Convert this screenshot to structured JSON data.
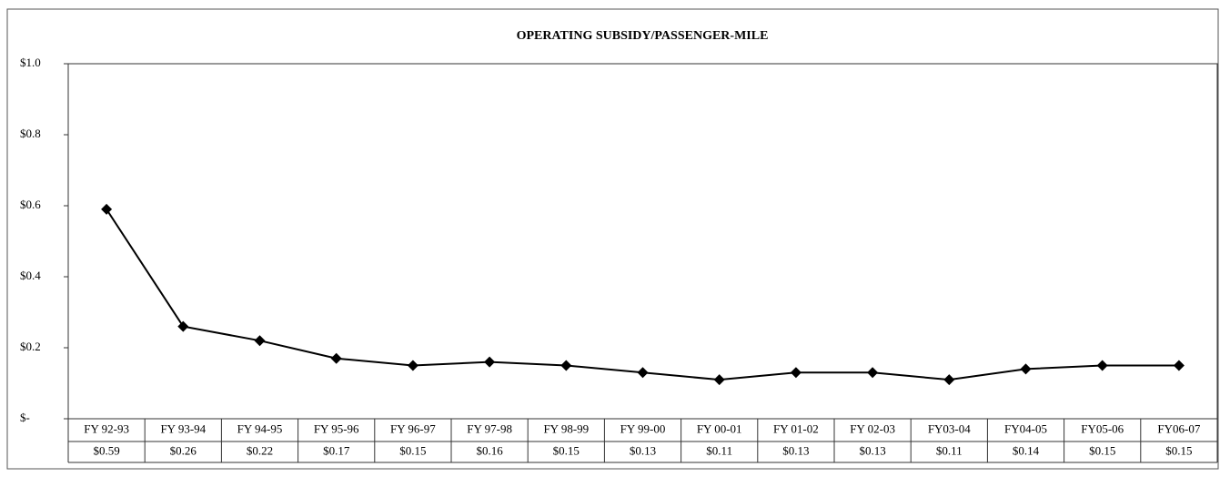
{
  "chart_data": {
    "type": "line",
    "title": "OPERATING SUBSIDY/PASSENGER-MILE",
    "categories": [
      "FY 92-93",
      "FY 93-94",
      "FY 94-95",
      "FY 95-96",
      "FY 96-97",
      "FY 97-98",
      "FY 98-99",
      "FY 99-00",
      "FY 00-01",
      "FY 01-02",
      "FY 02-03",
      "FY03-04",
      "FY04-05",
      "FY05-06",
      "FY06-07"
    ],
    "values": [
      0.59,
      0.26,
      0.22,
      0.17,
      0.15,
      0.16,
      0.15,
      0.13,
      0.11,
      0.13,
      0.13,
      0.11,
      0.14,
      0.15,
      0.15
    ],
    "value_labels": [
      "$0.59",
      "$0.26",
      "$0.22",
      "$0.17",
      "$0.15",
      "$0.16",
      "$0.15",
      "$0.13",
      "$0.11",
      "$0.13",
      "$0.13",
      "$0.11",
      "$0.14",
      "$0.15",
      "$0.15"
    ],
    "color": "#000000",
    "ylim": [
      0,
      1
    ],
    "yticks": [
      {
        "value": 0,
        "label": "$-"
      },
      {
        "value": 0.2,
        "label": "$0.2"
      },
      {
        "value": 0.4,
        "label": "$0.4"
      },
      {
        "value": 0.6,
        "label": "$0.6"
      },
      {
        "value": 0.8,
        "label": "$0.8"
      },
      {
        "value": 1,
        "label": "$1.0"
      }
    ],
    "grid": false
  }
}
